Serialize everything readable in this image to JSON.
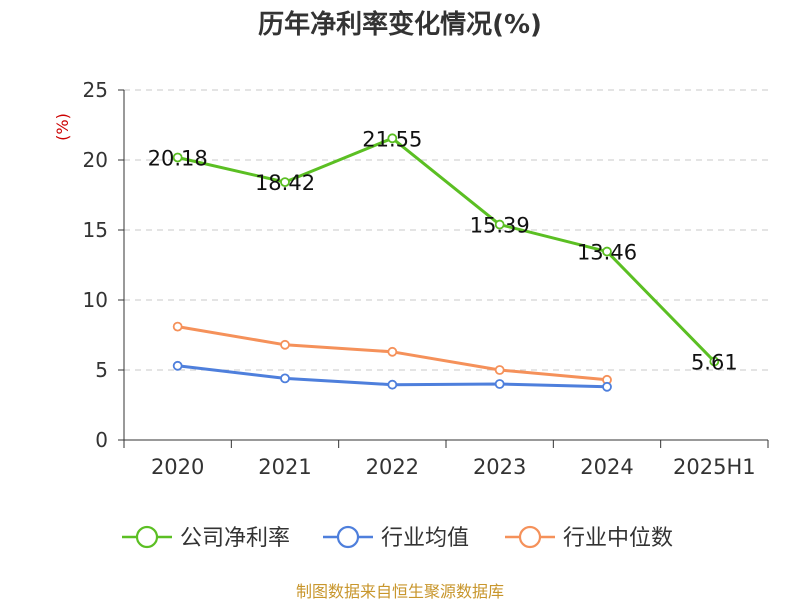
{
  "title": "历年净利率变化情况(%)",
  "footer": "制图数据来自恒生聚源数据库",
  "colors": {
    "company": "#5bbf23",
    "industry_avg": "#4e7fdc",
    "industry_median": "#f5915a",
    "grid": "#c8c8c8",
    "axis": "#333333",
    "unit": "#cc0000"
  },
  "chart_data": {
    "type": "line",
    "title": "历年净利率变化情况(%)",
    "ylabel": "(%)",
    "ylim": [
      0,
      25
    ],
    "yticks": [
      "0",
      "5",
      "10",
      "15",
      "20",
      "25"
    ],
    "categories": [
      "2020",
      "2021",
      "2022",
      "2023",
      "2024",
      "2025H1"
    ],
    "grid": true,
    "legend_position": "bottom",
    "series": [
      {
        "name": "公司净利率",
        "values": [
          20.18,
          18.42,
          21.55,
          15.39,
          13.46,
          5.61
        ],
        "labels": [
          "20.18",
          "18.42",
          "21.55",
          "15.39",
          "13.46",
          "5.61"
        ]
      },
      {
        "name": "行业均值",
        "values": [
          5.3,
          4.4,
          3.95,
          4.0,
          3.8,
          null
        ]
      },
      {
        "name": "行业中位数",
        "values": [
          8.1,
          6.8,
          6.3,
          5.0,
          4.3,
          null
        ]
      }
    ]
  }
}
